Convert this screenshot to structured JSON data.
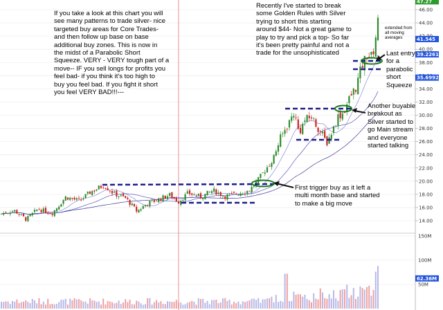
{
  "annotations": {
    "intro": "If you take a look at this chart you will\nsee many patterns to trade silver- nice\ntargeted buy areas for Core Trades-\nand then follow up base on base\nadditional buy zones.  This is now in\nthe midst of a Parabolic Short\nSqueeze.  VERY - VERY tough part of a\nmove--  IF you sell longs for profits you\nfeel bad-  if you think it's too high to\nbuy you feel bad.  If you fight it short\nyou feel VERY BAD!!!---",
    "recently": "Recently I've started to break\nsome Golden Rules with Silver\ntrying to short this starting\naround $44- Not a great game to\nplay to try and pick a top-  So far\nit's been pretty painful and not a\ntrade for the unsophisticated",
    "extended": "extended from\nall moving\naverages",
    "last_entry": "Last entry\nfor a\nparabolic\nshort\nSqueeze",
    "another": "Another buyable\nbreakout as\nSilver started to\ngo Main stream\nand everyone\nstarted talking",
    "first": "First trigger buy as it left a\nmulti month base and started\nto make a big move"
  },
  "colors": {
    "up_bar": "#2e8b2e",
    "down_bar": "#cc2222",
    "ma_line": "#6a6ad0",
    "dash_line": "#1c1c8a",
    "circle": "#1a7a1a",
    "divider": "#e07070",
    "grid": "#e8e8e8",
    "price_badge": "#2255dd",
    "last_badge": "#2e9a2e"
  },
  "chart_data": {
    "type": "candlestick",
    "price_axis": {
      "min": 13,
      "max": 47,
      "ticks": [
        14,
        16,
        18,
        20,
        22,
        24,
        26,
        28,
        30,
        32,
        34,
        36,
        38,
        40,
        42,
        44,
        46
      ],
      "tick_labels": [
        "14.00",
        "16.00",
        "18.00",
        "20.00",
        "22.00",
        "24.00",
        "26.00",
        "28.00",
        "30.00",
        "32.00",
        "34.00",
        "36.00",
        "38.00",
        "40.00",
        "42.00",
        "44.00",
        "46.00"
      ]
    },
    "badges": [
      {
        "label": "47.27",
        "value": 47.27,
        "kind": "last"
      },
      {
        "label": "41.545",
        "value": 41.545,
        "kind": "ma"
      },
      {
        "label": "39.2261",
        "value": 39.2261,
        "kind": "ma"
      },
      {
        "label": "35.6992",
        "value": 35.6992,
        "kind": "ma"
      }
    ],
    "volume_axis": {
      "max": 150,
      "ticks": [
        50,
        100,
        150
      ],
      "tick_labels": [
        "50M",
        "100M",
        "150M"
      ],
      "last_label": "62.36M",
      "last_value": 62.36
    },
    "price_path": [
      [
        0,
        15.0
      ],
      [
        20,
        15.6
      ],
      [
        38,
        14.2
      ],
      [
        55,
        15.8
      ],
      [
        75,
        15.1
      ],
      [
        95,
        17.6
      ],
      [
        115,
        17.0
      ],
      [
        130,
        18.3
      ],
      [
        150,
        19.4
      ],
      [
        165,
        18.1
      ],
      [
        182,
        17.4
      ],
      [
        198,
        15.4
      ],
      [
        212,
        16.6
      ],
      [
        228,
        17.2
      ],
      [
        245,
        17.9
      ],
      [
        258,
        16.9
      ],
      [
        272,
        18.2
      ],
      [
        290,
        17.6
      ],
      [
        308,
        18.6
      ],
      [
        325,
        17.7
      ],
      [
        345,
        18.2
      ],
      [
        360,
        18.6
      ],
      [
        372,
        20.0
      ],
      [
        385,
        22.0
      ],
      [
        395,
        23.5
      ],
      [
        405,
        26.5
      ],
      [
        415,
        28.4
      ],
      [
        425,
        30.5
      ],
      [
        432,
        27.3
      ],
      [
        440,
        29.2
      ],
      [
        450,
        29.8
      ],
      [
        458,
        28.3
      ],
      [
        466,
        27.0
      ],
      [
        472,
        25.8
      ],
      [
        480,
        27.6
      ],
      [
        488,
        29.8
      ],
      [
        496,
        30.4
      ],
      [
        505,
        32.6
      ],
      [
        514,
        34.2
      ],
      [
        522,
        37.2
      ],
      [
        530,
        39.2
      ],
      [
        538,
        38.8
      ],
      [
        546,
        44.2
      ],
      [
        548,
        47.27
      ]
    ]
  }
}
